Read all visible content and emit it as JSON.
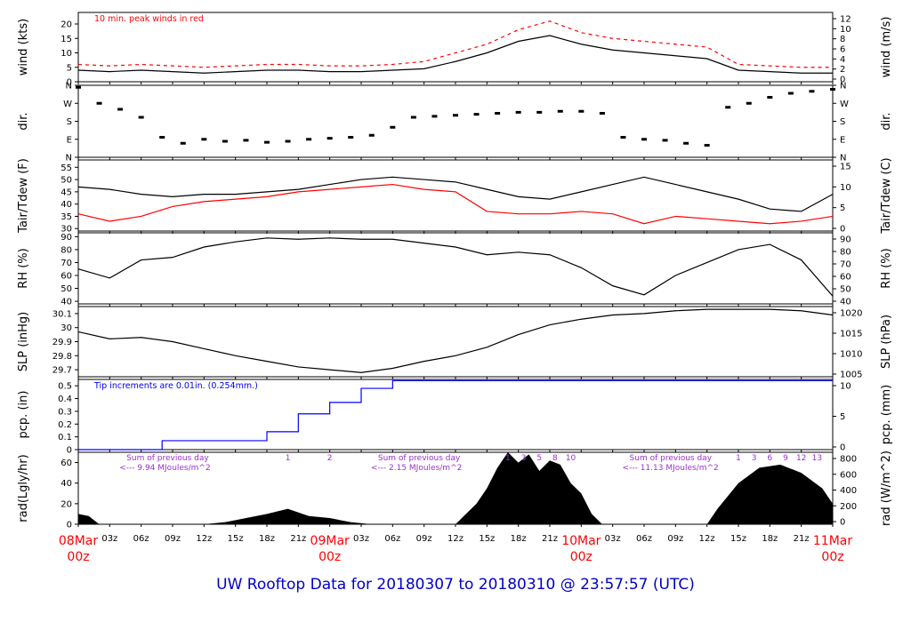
{
  "footer_title": "UW Rooftop Data for 20180307  to  20180310 @ 23:57:57  (UTC)",
  "colors": {
    "primary": "#000000",
    "accent_red": "#ff0000",
    "precip_blue": "#0000ff",
    "annotation_purple": "#9b30d0",
    "footer_blue": "#0000cc",
    "date_red": "#ff0000"
  },
  "x_axis": {
    "tick_labels": [
      "03z",
      "06z",
      "09z",
      "12z",
      "15z",
      "18z",
      "21z",
      "09Mar",
      "03z",
      "06z",
      "09z",
      "12z",
      "15z",
      "18z",
      "21z",
      "10Mar",
      "03z",
      "06z",
      "09z",
      "12z",
      "15z",
      "18z",
      "21z",
      "11Mar"
    ],
    "date_labels": [
      {
        "date": "08Mar",
        "hour": "00z",
        "index": 0
      },
      {
        "date": "09Mar",
        "hour": "00z",
        "index": 8
      },
      {
        "date": "10Mar",
        "hour": "00z",
        "index": 16
      },
      {
        "date": "11Mar",
        "hour": "00z",
        "index": 24
      }
    ]
  },
  "chart_data": [
    {
      "id": "wind",
      "type": "line",
      "ylabel_left": "wind (kts)",
      "ylabel_right": "wind (m/s)",
      "ylim": [
        0,
        24
      ],
      "yticks_left": [
        0,
        5,
        10,
        15,
        20
      ],
      "yticks_right": [
        0,
        2,
        4,
        6,
        8,
        10,
        12
      ],
      "annotation": "10 min. peak winds in red",
      "series": [
        {
          "color": "#000000",
          "x": [
            0,
            3,
            6,
            9,
            12,
            15,
            18,
            21,
            24,
            27,
            30,
            33,
            36,
            39,
            42,
            45,
            48,
            51,
            54,
            57,
            60,
            63,
            66,
            69,
            72
          ],
          "values": [
            4,
            3.5,
            4,
            3.5,
            3,
            3.5,
            4,
            4,
            3.5,
            3.5,
            4,
            4.5,
            7,
            10,
            14,
            16,
            13,
            11,
            10,
            9,
            8,
            4,
            3.5,
            3,
            3
          ]
        },
        {
          "color": "#ff0000",
          "x": [
            0,
            3,
            6,
            9,
            12,
            15,
            18,
            21,
            24,
            27,
            30,
            33,
            36,
            39,
            42,
            45,
            48,
            51,
            54,
            57,
            60,
            63,
            66,
            69,
            72
          ],
          "values": [
            6,
            5.5,
            6,
            5.5,
            5,
            5.5,
            6,
            6,
            5.5,
            5.5,
            6,
            7,
            10,
            13,
            18,
            21,
            17,
            15,
            14,
            13,
            12,
            6,
            5.5,
            5,
            5
          ]
        }
      ]
    },
    {
      "id": "dir",
      "type": "scatter",
      "ylabel_left": "dir.",
      "ylabel_right": "dir.",
      "ylim": [
        0,
        360
      ],
      "yticks_left": [
        "N",
        "E",
        "S",
        "W",
        "N"
      ],
      "yticks_right": [
        "N",
        "E",
        "S",
        "W",
        "N"
      ],
      "series": [
        {
          "color": "#000000",
          "x": [
            0,
            2,
            4,
            6,
            8,
            10,
            12,
            14,
            16,
            18,
            20,
            22,
            24,
            26,
            28,
            30,
            32,
            34,
            36,
            38,
            40,
            42,
            44,
            46,
            48,
            50,
            52,
            54,
            56,
            58,
            60,
            62,
            64,
            66,
            68,
            70,
            72
          ],
          "values": [
            350,
            270,
            240,
            200,
            100,
            70,
            90,
            80,
            85,
            75,
            80,
            90,
            95,
            100,
            110,
            150,
            200,
            205,
            210,
            215,
            220,
            225,
            225,
            230,
            230,
            220,
            100,
            90,
            85,
            70,
            60,
            250,
            270,
            300,
            320,
            330,
            340
          ]
        }
      ]
    },
    {
      "id": "temp",
      "type": "line",
      "ylabel_left": "Tair/Tdew (F)",
      "ylabel_right": "Tair/Tdew (C)",
      "ylim": [
        29,
        58
      ],
      "yticks_left": [
        30,
        35,
        40,
        45,
        50,
        55
      ],
      "yticks_right": [
        0,
        5,
        10,
        15
      ],
      "series": [
        {
          "color": "#000000",
          "x": [
            0,
            3,
            6,
            9,
            12,
            15,
            18,
            21,
            24,
            27,
            30,
            33,
            36,
            39,
            42,
            45,
            48,
            51,
            54,
            57,
            60,
            63,
            66,
            69,
            72
          ],
          "values": [
            47,
            46,
            44,
            43,
            44,
            44,
            45,
            46,
            48,
            50,
            51,
            50,
            49,
            46,
            43,
            42,
            45,
            48,
            51,
            48,
            45,
            42,
            38,
            37,
            44
          ]
        },
        {
          "color": "#ff0000",
          "x": [
            0,
            3,
            6,
            9,
            12,
            15,
            18,
            21,
            24,
            27,
            30,
            33,
            36,
            39,
            42,
            45,
            48,
            51,
            54,
            57,
            60,
            63,
            66,
            69,
            72
          ],
          "values": [
            36,
            33,
            35,
            39,
            41,
            42,
            43,
            45,
            46,
            47,
            48,
            46,
            45,
            37,
            36,
            36,
            37,
            36,
            32,
            35,
            34,
            33,
            32,
            33,
            35
          ]
        }
      ]
    },
    {
      "id": "rh",
      "type": "line",
      "ylabel_left": "RH (%)",
      "ylabel_right": "RH (%)",
      "ylim": [
        38,
        93
      ],
      "yticks_left": [
        40,
        50,
        60,
        70,
        80,
        90
      ],
      "yticks_right": [
        40,
        50,
        60,
        70,
        80,
        90
      ],
      "series": [
        {
          "color": "#000000",
          "x": [
            0,
            3,
            6,
            9,
            12,
            15,
            18,
            21,
            24,
            27,
            30,
            33,
            36,
            39,
            42,
            45,
            48,
            51,
            54,
            57,
            60,
            63,
            66,
            69,
            72
          ],
          "values": [
            65,
            58,
            72,
            74,
            82,
            86,
            89,
            88,
            89,
            88,
            88,
            85,
            82,
            76,
            78,
            76,
            66,
            52,
            45,
            60,
            70,
            80,
            84,
            72,
            44
          ]
        }
      ]
    },
    {
      "id": "slp",
      "type": "line",
      "ylabel_left": "SLP (inHg)",
      "ylabel_right": "SLP (hPa)",
      "ylim": [
        29.65,
        30.15
      ],
      "yticks_left": [
        29.7,
        29.8,
        29.9,
        30.0,
        30.1
      ],
      "yticks_right": [
        1005,
        1010,
        1015,
        1020
      ],
      "series": [
        {
          "color": "#000000",
          "x": [
            0,
            3,
            6,
            9,
            12,
            15,
            18,
            21,
            24,
            27,
            30,
            33,
            36,
            39,
            42,
            45,
            48,
            51,
            54,
            57,
            60,
            63,
            66,
            69,
            72
          ],
          "values": [
            29.97,
            29.92,
            29.93,
            29.9,
            29.85,
            29.8,
            29.76,
            29.72,
            29.7,
            29.68,
            29.71,
            29.76,
            29.8,
            29.86,
            29.95,
            30.02,
            30.06,
            30.09,
            30.1,
            30.12,
            30.13,
            30.13,
            30.13,
            30.12,
            30.09
          ]
        }
      ]
    },
    {
      "id": "pcp",
      "type": "line",
      "ylabel_left": "pcp. (in)",
      "ylabel_right": "pcp. (mm)",
      "ylim": [
        0,
        0.55
      ],
      "yticks_left": [
        0,
        0.1,
        0.2,
        0.3,
        0.4,
        0.5
      ],
      "yticks_right": [
        0,
        5,
        10
      ],
      "annotation": "Tip increments are 0.01in. (0.254mm.)",
      "series": [
        {
          "color": "#0000ff",
          "x": [
            0,
            3,
            6,
            8,
            12,
            15,
            18,
            21,
            24,
            27,
            30,
            33,
            72
          ],
          "values": [
            0,
            0,
            0,
            0.07,
            0.07,
            0.07,
            0.14,
            0.28,
            0.37,
            0.48,
            0.54,
            0.54,
            0.54
          ]
        }
      ]
    },
    {
      "id": "rad",
      "type": "area",
      "ylabel_left": "rad(Lgly/hr)",
      "ylabel_right": "rad (W/m^2)",
      "ylim": [
        0,
        70
      ],
      "yticks_left": [
        0,
        20,
        40,
        60
      ],
      "yticks_right": [
        0,
        200,
        400,
        600,
        800
      ],
      "annotations": [
        {
          "line1": "Sum of previous day",
          "line2": "<--- 9.94 MJoules/m^2",
          "x": 8
        },
        {
          "line1": "Sum of previous day",
          "line2": "<--- 2.15 MJoules/m^2",
          "x": 32
        },
        {
          "line1": "Sum of previous day",
          "line2": "<--- 11.13 MJoules/m^2",
          "x": 56
        }
      ],
      "markers": [
        {
          "label": "1",
          "x": 20
        },
        {
          "label": "2",
          "x": 24
        },
        {
          "label": "1",
          "x": 41
        },
        {
          "label": "3",
          "x": 42.5
        },
        {
          "label": "5",
          "x": 44
        },
        {
          "label": "8",
          "x": 45.5
        },
        {
          "label": "10",
          "x": 47
        },
        {
          "label": "1",
          "x": 63
        },
        {
          "label": "3",
          "x": 64.5
        },
        {
          "label": "6",
          "x": 66
        },
        {
          "label": "9",
          "x": 67.5
        },
        {
          "label": "12",
          "x": 69
        },
        {
          "label": "13",
          "x": 70.5
        }
      ],
      "series": [
        {
          "color": "#000000",
          "x": [
            0,
            1,
            2,
            12,
            14,
            18,
            20,
            22,
            24,
            26,
            28,
            36,
            37,
            38,
            39,
            40,
            41,
            42,
            43,
            44,
            45,
            46,
            47,
            48,
            49,
            50,
            60,
            61,
            63,
            65,
            67,
            69,
            71,
            72
          ],
          "values": [
            10,
            8,
            0,
            0,
            2,
            10,
            15,
            8,
            6,
            2,
            0,
            0,
            10,
            20,
            35,
            55,
            70,
            60,
            68,
            52,
            62,
            58,
            40,
            30,
            10,
            0,
            0,
            15,
            40,
            55,
            58,
            50,
            35,
            20
          ]
        }
      ]
    }
  ]
}
